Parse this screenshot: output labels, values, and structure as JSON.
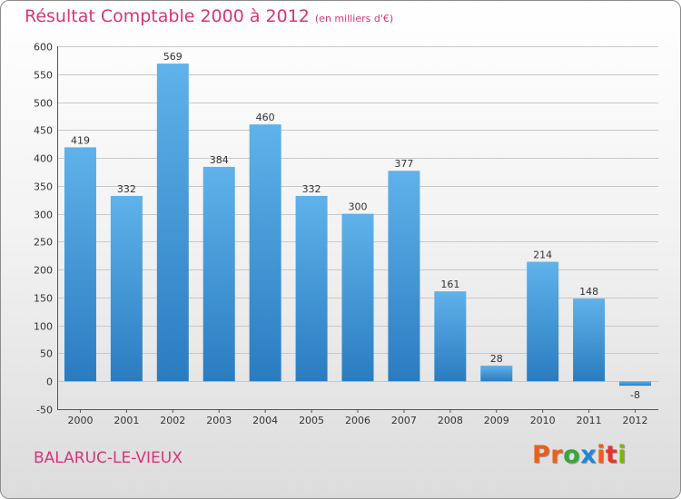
{
  "title": "Résultat Comptable 2000 à 2012",
  "subtitle": "(en milliers d'€)",
  "city": "BALARUC-LE-VIEUX",
  "logo": {
    "letters": [
      "P",
      "r",
      "o",
      "x",
      "i",
      "t",
      "i"
    ]
  },
  "colors": {
    "accent": "#d9347a",
    "bar_light": "#5fb2ea",
    "bar_dark": "#2a7cc0",
    "grid": "#c8c8c8",
    "logo": [
      "#e8601c",
      "#e8601c",
      "#3aa53a",
      "#1e88d6",
      "#e8601c",
      "#e83030",
      "#7ab800"
    ]
  },
  "chart_data": {
    "type": "bar",
    "title": "Résultat Comptable 2000 à 2012",
    "subtitle": "(en milliers d'€)",
    "xlabel": "",
    "ylabel": "",
    "categories": [
      "2000",
      "2001",
      "2002",
      "2003",
      "2004",
      "2005",
      "2006",
      "2007",
      "2008",
      "2009",
      "2010",
      "2011",
      "2012"
    ],
    "values": [
      419,
      332,
      569,
      384,
      460,
      332,
      300,
      377,
      161,
      28,
      214,
      148,
      -8
    ],
    "ylim": [
      -50,
      600
    ],
    "yticks": [
      "-50",
      "0",
      "50",
      "100",
      "150",
      "200",
      "250",
      "300",
      "350",
      "400",
      "450",
      "500",
      "550",
      "600"
    ],
    "grid": true
  }
}
